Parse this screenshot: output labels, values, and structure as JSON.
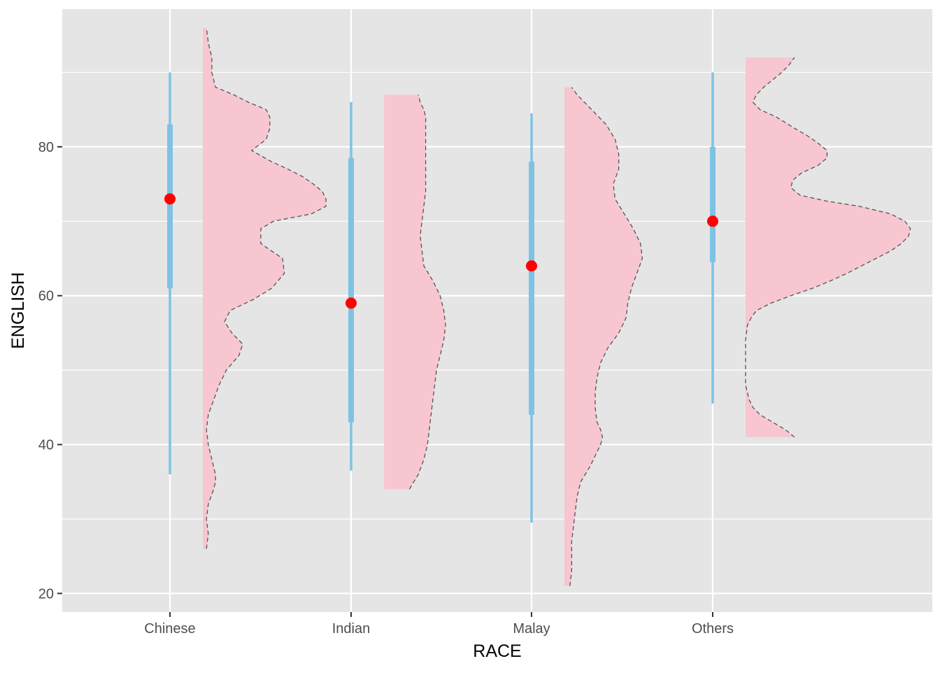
{
  "chart_data": {
    "type": "raincloud",
    "title": "",
    "xlabel": "RACE",
    "ylabel": "ENGLISH",
    "ylim": [
      17.5,
      98.5
    ],
    "y_ticks": [
      20,
      40,
      60,
      80
    ],
    "grid": true,
    "background_color": "#e5e5e5",
    "grid_color": "#ffffff",
    "interval_color": "#7ec3e4",
    "point_color": "#ff0000",
    "density_fill": "#f7c6d1",
    "density_outline": "#555555",
    "categories": [
      "Chinese",
      "Indian",
      "Malay",
      "Others"
    ],
    "groups": [
      {
        "category": "Chinese",
        "median": 73,
        "interval_inner": [
          61,
          83
        ],
        "interval_outer": [
          36,
          90
        ],
        "density": {
          "ymin": 26,
          "ymax": 96,
          "max_extent": 0.68,
          "profile": [
            [
              26,
              0.02
            ],
            [
              28,
              0.03
            ],
            [
              30,
              0.02
            ],
            [
              32,
              0.03
            ],
            [
              34,
              0.06
            ],
            [
              35,
              0.07
            ],
            [
              36,
              0.07
            ],
            [
              38,
              0.05
            ],
            [
              40,
              0.03
            ],
            [
              42,
              0.02
            ],
            [
              44,
              0.03
            ],
            [
              46,
              0.06
            ],
            [
              48,
              0.09
            ],
            [
              50,
              0.13
            ],
            [
              52,
              0.2
            ],
            [
              53.5,
              0.22
            ],
            [
              55,
              0.16
            ],
            [
              56.5,
              0.12
            ],
            [
              58,
              0.15
            ],
            [
              59.5,
              0.28
            ],
            [
              61,
              0.38
            ],
            [
              63,
              0.45
            ],
            [
              65,
              0.44
            ],
            [
              67,
              0.32
            ],
            [
              69,
              0.32
            ],
            [
              70,
              0.39
            ],
            [
              71,
              0.6
            ],
            [
              72,
              0.68
            ],
            [
              73,
              0.68
            ],
            [
              74,
              0.66
            ],
            [
              75,
              0.61
            ],
            [
              76,
              0.55
            ],
            [
              77,
              0.47
            ],
            [
              78,
              0.38
            ],
            [
              79.5,
              0.27
            ],
            [
              81,
              0.35
            ],
            [
              82.5,
              0.37
            ],
            [
              84,
              0.37
            ],
            [
              85,
              0.35
            ],
            [
              86,
              0.25
            ],
            [
              87,
              0.17
            ],
            [
              88,
              0.07
            ],
            [
              90,
              0.05
            ],
            [
              92,
              0.05
            ],
            [
              94,
              0.03
            ],
            [
              96,
              0.02
            ]
          ]
        }
      },
      {
        "category": "Indian",
        "median": 59,
        "interval_inner": [
          43,
          78.5
        ],
        "interval_outer": [
          36.5,
          86
        ],
        "density": {
          "ymin": 34,
          "ymax": 87,
          "max_extent": 0.34,
          "profile": [
            [
              34,
              0.14
            ],
            [
              36,
              0.19
            ],
            [
              38,
              0.22
            ],
            [
              40,
              0.24
            ],
            [
              42,
              0.25
            ],
            [
              44,
              0.26
            ],
            [
              46,
              0.27
            ],
            [
              48,
              0.28
            ],
            [
              50,
              0.29
            ],
            [
              52,
              0.31
            ],
            [
              54,
              0.33
            ],
            [
              56,
              0.34
            ],
            [
              58,
              0.33
            ],
            [
              60,
              0.31
            ],
            [
              62,
              0.27
            ],
            [
              64,
              0.22
            ],
            [
              66,
              0.21
            ],
            [
              68,
              0.2
            ],
            [
              70,
              0.21
            ],
            [
              72,
              0.22
            ],
            [
              74,
              0.23
            ],
            [
              76,
              0.23
            ],
            [
              78,
              0.23
            ],
            [
              80,
              0.23
            ],
            [
              82,
              0.23
            ],
            [
              84,
              0.23
            ],
            [
              85,
              0.22
            ],
            [
              86,
              0.2
            ],
            [
              87,
              0.19
            ]
          ]
        }
      },
      {
        "category": "Malay",
        "median": 64,
        "interval_inner": [
          44,
          78
        ],
        "interval_outer": [
          29.5,
          84.5
        ],
        "density": {
          "ymin": 21,
          "ymax": 88,
          "max_extent": 0.43,
          "profile": [
            [
              21,
              0.03
            ],
            [
              23,
              0.04
            ],
            [
              25,
              0.04
            ],
            [
              27,
              0.04
            ],
            [
              29,
              0.05
            ],
            [
              31,
              0.06
            ],
            [
              33,
              0.07
            ],
            [
              35,
              0.09
            ],
            [
              37,
              0.14
            ],
            [
              39,
              0.18
            ],
            [
              40,
              0.2
            ],
            [
              41,
              0.21
            ],
            [
              42,
              0.2
            ],
            [
              43,
              0.18
            ],
            [
              45,
              0.17
            ],
            [
              47,
              0.17
            ],
            [
              49,
              0.18
            ],
            [
              51,
              0.2
            ],
            [
              53,
              0.24
            ],
            [
              55,
              0.3
            ],
            [
              57,
              0.34
            ],
            [
              59,
              0.35
            ],
            [
              61,
              0.37
            ],
            [
              63,
              0.4
            ],
            [
              65,
              0.43
            ],
            [
              67,
              0.42
            ],
            [
              69,
              0.38
            ],
            [
              71,
              0.33
            ],
            [
              73,
              0.28
            ],
            [
              75,
              0.27
            ],
            [
              77,
              0.3
            ],
            [
              79,
              0.3
            ],
            [
              81,
              0.28
            ],
            [
              83,
              0.23
            ],
            [
              85,
              0.15
            ],
            [
              87,
              0.07
            ],
            [
              88,
              0.04
            ]
          ]
        }
      },
      {
        "category": "Others",
        "median": 70,
        "interval_inner": [
          64.5,
          80
        ],
        "interval_outer": [
          45.5,
          90
        ],
        "density": {
          "ymin": 41,
          "ymax": 92,
          "max_extent": 0.91,
          "profile": [
            [
              41,
              0.27
            ],
            [
              42,
              0.22
            ],
            [
              43,
              0.15
            ],
            [
              44,
              0.08
            ],
            [
              45,
              0.04
            ],
            [
              46,
              0.02
            ],
            [
              48,
              0.0
            ],
            [
              50,
              0.0
            ],
            [
              52,
              0.0
            ],
            [
              54,
              0.0
            ],
            [
              56,
              0.01
            ],
            [
              57,
              0.03
            ],
            [
              58,
              0.06
            ],
            [
              59,
              0.14
            ],
            [
              60,
              0.25
            ],
            [
              61,
              0.37
            ],
            [
              62,
              0.47
            ],
            [
              63,
              0.56
            ],
            [
              64,
              0.64
            ],
            [
              65,
              0.72
            ],
            [
              66,
              0.8
            ],
            [
              67,
              0.86
            ],
            [
              68,
              0.9
            ],
            [
              69,
              0.91
            ],
            [
              70,
              0.88
            ],
            [
              71,
              0.8
            ],
            [
              72,
              0.63
            ],
            [
              72.7,
              0.45
            ],
            [
              73.5,
              0.3
            ],
            [
              74.5,
              0.25
            ],
            [
              75.5,
              0.26
            ],
            [
              76.5,
              0.31
            ],
            [
              77.5,
              0.4
            ],
            [
              78.5,
              0.45
            ],
            [
              79.5,
              0.45
            ],
            [
              80.5,
              0.4
            ],
            [
              81.5,
              0.34
            ],
            [
              82.5,
              0.27
            ],
            [
              84,
              0.17
            ],
            [
              85,
              0.08
            ],
            [
              86,
              0.04
            ],
            [
              87,
              0.06
            ],
            [
              88,
              0.1
            ],
            [
              89,
              0.15
            ],
            [
              90,
              0.2
            ],
            [
              91,
              0.24
            ],
            [
              92,
              0.27
            ]
          ]
        }
      }
    ]
  }
}
